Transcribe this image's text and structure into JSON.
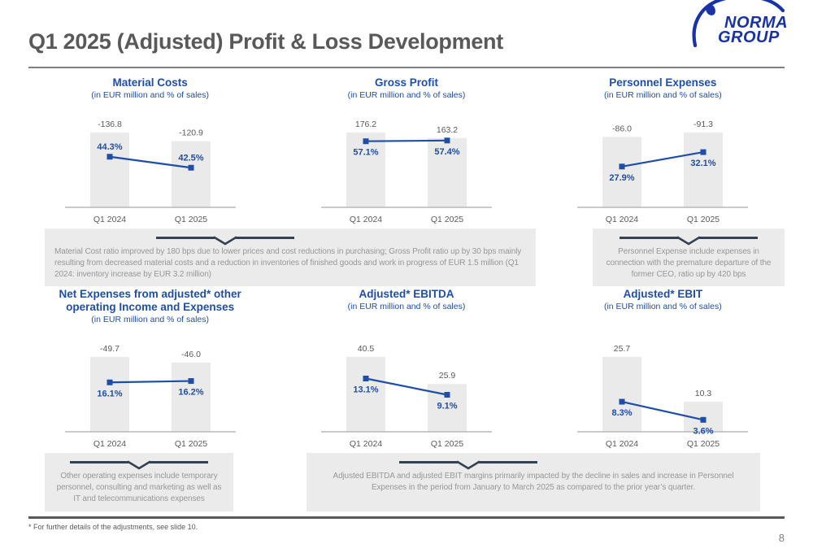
{
  "header": {
    "title": "Q1 2025 (Adjusted) Profit & Loss Development",
    "logo": {
      "line1": "NORMA",
      "line2": "GROUP"
    }
  },
  "chart_data": [
    {
      "type": "bar",
      "title": "Material Costs",
      "subtitle": "(in EUR million and % of sales)",
      "categories": [
        "Q1 2024",
        "Q1 2025"
      ],
      "series": [
        {
          "name": "EUR million",
          "type": "bar",
          "values": [
            -136.8,
            -120.9
          ],
          "labels": [
            "-136.8",
            "-120.9"
          ]
        },
        {
          "name": "% of sales",
          "type": "line",
          "values": [
            44.3,
            42.5
          ],
          "labels": [
            "44.3%",
            "42.5%"
          ]
        }
      ],
      "pct_axis": [
        36,
        54
      ],
      "pct_label_position": "above",
      "legend": "none",
      "grid": "off"
    },
    {
      "type": "bar",
      "title": "Gross Profit",
      "subtitle": "(in EUR million and % of sales)",
      "categories": [
        "Q1 2024",
        "Q1 2025"
      ],
      "series": [
        {
          "name": "EUR million",
          "type": "bar",
          "values": [
            176.2,
            163.2
          ],
          "labels": [
            "176.2",
            "163.2"
          ]
        },
        {
          "name": "% of sales",
          "type": "line",
          "values": [
            57.1,
            57.4
          ],
          "labels": [
            "57.1%",
            "57.4%"
          ]
        }
      ],
      "pct_axis": [
        30,
        75
      ],
      "pct_label_position": "below",
      "legend": "none",
      "grid": "off"
    },
    {
      "type": "bar",
      "title": "Personnel Expenses",
      "subtitle": "(in EUR million and % of sales)",
      "categories": [
        "Q1 2024",
        "Q1 2025"
      ],
      "series": [
        {
          "name": "EUR million",
          "type": "bar",
          "values": [
            -86.0,
            -91.3
          ],
          "labels": [
            "-86.0",
            "-91.3"
          ]
        },
        {
          "name": "% of sales",
          "type": "line",
          "values": [
            27.9,
            32.1
          ],
          "labels": [
            "27.9%",
            "32.1%"
          ]
        }
      ],
      "pct_axis": [
        16,
        48
      ],
      "pct_label_position": "below",
      "legend": "none",
      "grid": "off"
    },
    {
      "type": "bar",
      "title": "Net Expenses from adjusted* other operating Income and Expenses",
      "subtitle": "(in EUR million and % of sales)",
      "categories": [
        "Q1 2024",
        "Q1 2025"
      ],
      "series": [
        {
          "name": "EUR million",
          "type": "bar",
          "values": [
            -49.7,
            -46.0
          ],
          "labels": [
            "-49.7",
            "-46.0"
          ]
        },
        {
          "name": "% of sales",
          "type": "line",
          "values": [
            16.1,
            16.2
          ],
          "labels": [
            "16.1%",
            "16.2%"
          ]
        }
      ],
      "pct_axis": [
        12.5,
        20.5
      ],
      "pct_label_position": "below",
      "legend": "none",
      "grid": "off"
    },
    {
      "type": "bar",
      "title": "Adjusted* EBITDA",
      "subtitle": "(in EUR million and % of sales)",
      "categories": [
        "Q1 2024",
        "Q1 2025"
      ],
      "series": [
        {
          "name": "EUR million",
          "type": "bar",
          "values": [
            40.5,
            25.9
          ],
          "labels": [
            "40.5",
            "25.9"
          ]
        },
        {
          "name": "% of sales",
          "type": "line",
          "values": [
            13.1,
            9.1
          ],
          "labels": [
            "13.1%",
            "9.1%"
          ]
        }
      ],
      "pct_axis": [
        0,
        27
      ],
      "pct_label_position": "below",
      "legend": "none",
      "grid": "off"
    },
    {
      "type": "bar",
      "title": "Adjusted* EBIT",
      "subtitle": "(in EUR million and % of sales)",
      "categories": [
        "Q1 2024",
        "Q1 2025"
      ],
      "series": [
        {
          "name": "EUR million",
          "type": "bar",
          "values": [
            25.7,
            10.3
          ],
          "labels": [
            "25.7",
            "10.3"
          ]
        },
        {
          "name": "% of sales",
          "type": "line",
          "values": [
            8.3,
            3.6
          ],
          "labels": [
            "8.3%",
            "3.6%"
          ]
        }
      ],
      "pct_axis": [
        0.5,
        29
      ],
      "pct_label_position": "below",
      "legend": "none",
      "grid": "off"
    }
  ],
  "callouts": [
    {
      "text": "Material Cost ratio improved by 180 bps due to lower prices and cost reductions in purchasing; Gross Profit ratio up by 30 bps mainly resulting from decreased material costs and a reduction in inventories of finished goods and work in progress of EUR 1.5 million (Q1 2024: inventory increase by EUR 3.2 million)"
    },
    {
      "text": "Personnel Expense include expenses in connection with the premature departure of the former CEO, ratio up by 420 bps"
    },
    {
      "text": "Other operating expenses include temporary personnel, consulting and marketing as well as IT and telecommunications expenses"
    },
    {
      "text": "Adjusted EBITDA and adjusted EBIT margins primarily impacted by the decline in sales and increase in Personnel Expenses in the period from January to March 2025 as compared to the prior year’s quarter."
    }
  ],
  "footer": {
    "footnote": "* For further details of the adjustments, see slide 10.",
    "page_number": "8"
  },
  "colors": {
    "accent_blue": "#1f4ea8",
    "logo_blue": "#1733a5",
    "bar_fill": "#eaeaea",
    "axis_gray": "#b8b8b8",
    "value_gray": "#595959",
    "callout_bg": "#ebebeb",
    "callout_text": "#979797",
    "brace": "#334252",
    "title_gray": "#595959"
  }
}
